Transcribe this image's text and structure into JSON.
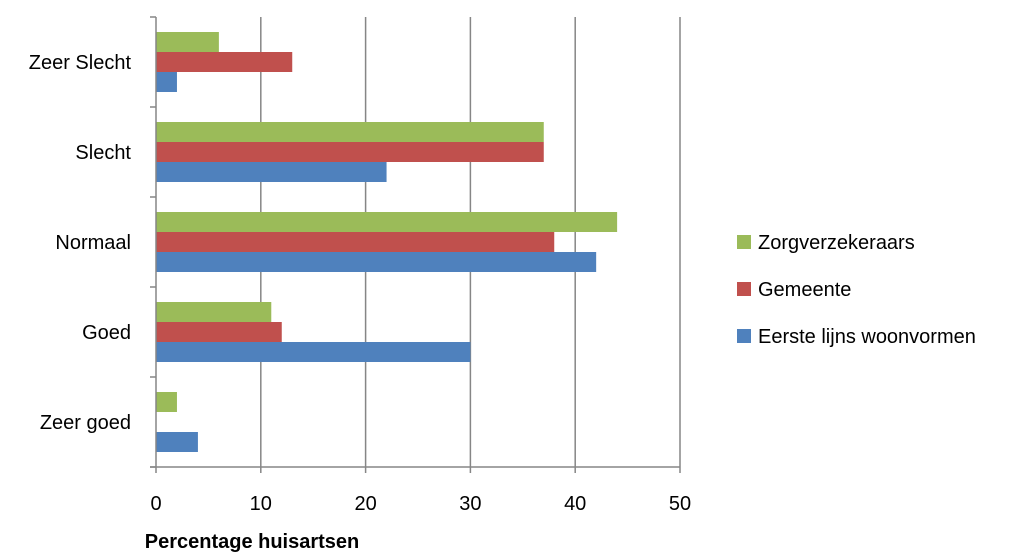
{
  "chart_data": {
    "type": "bar",
    "orientation": "horizontal",
    "categories": [
      "Zeer goed",
      "Goed",
      "Normaal",
      "Slecht",
      "Zeer Slecht"
    ],
    "series": [
      {
        "name": "Eerste lijns woonvormen",
        "color": "#4F81BD",
        "values": [
          4,
          30,
          42,
          22,
          2
        ]
      },
      {
        "name": "Gemeente",
        "color": "#C0504D",
        "values": [
          0,
          12,
          38,
          37,
          13
        ]
      },
      {
        "name": "Zorgverzekeraars",
        "color": "#9BBB59",
        "values": [
          2,
          11,
          44,
          37,
          6
        ]
      }
    ],
    "xlabel": "Percentage huisartsen",
    "ylabel": "",
    "xlim": [
      0,
      50
    ],
    "xticks": [
      "0",
      "10",
      "20",
      "30",
      "40",
      "50"
    ],
    "grid": true,
    "legend_position": "right"
  }
}
